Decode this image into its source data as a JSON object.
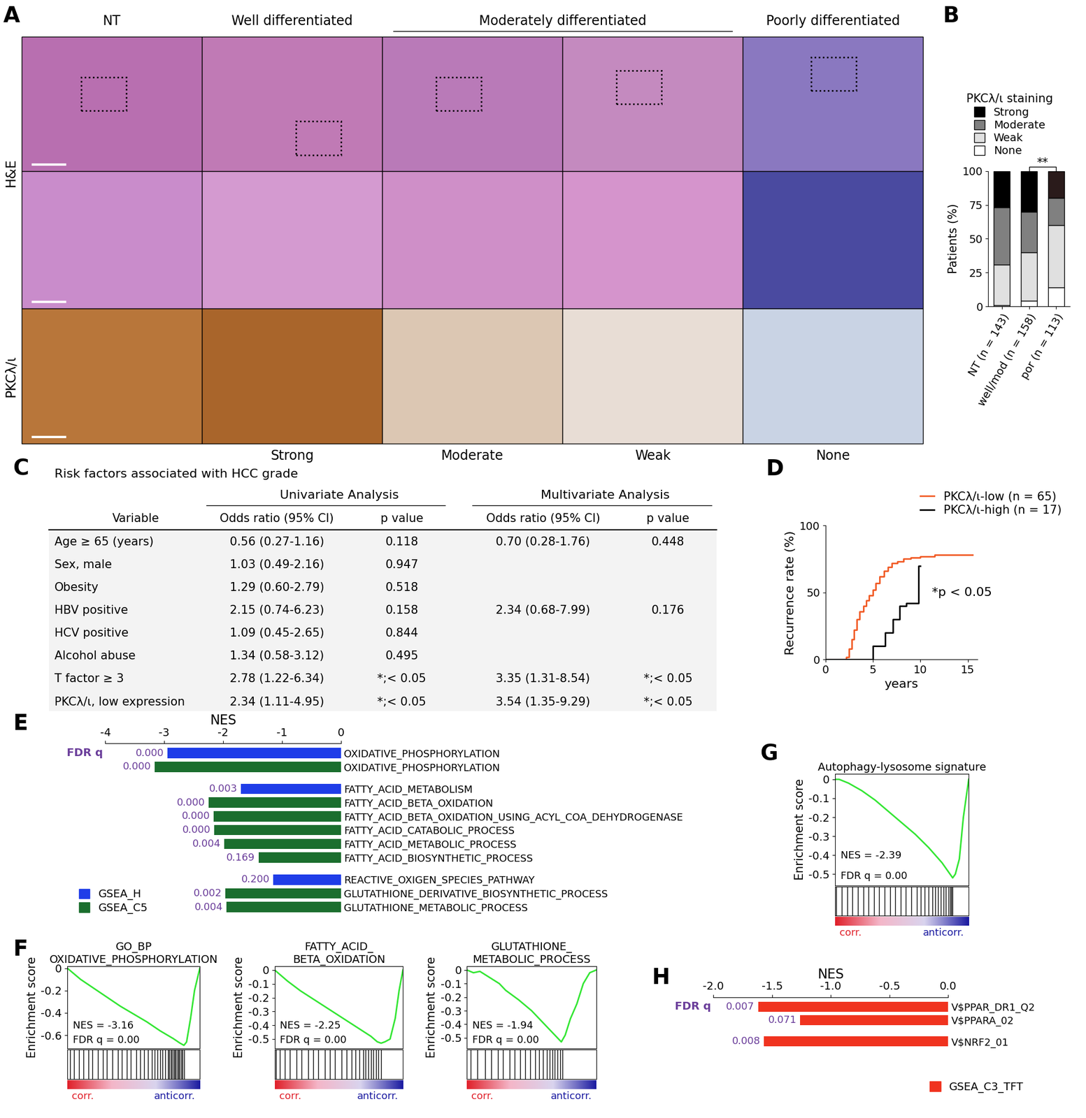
{
  "image_panel": {
    "panel": "A",
    "column_headers": [
      {
        "text": "NT",
        "span": 1
      },
      {
        "text": "Well differentiated",
        "span": 1
      },
      {
        "text": "Moderately differentiated",
        "span": 2
      },
      {
        "text": "Poorly differentiated",
        "span": 1
      }
    ],
    "row_labels": [
      {
        "text": "H&E",
        "rows": 2
      },
      {
        "text": "PKCλ/ι",
        "rows": 1
      }
    ],
    "staining_labels": [
      null,
      "Strong",
      "Moderate",
      "Weak",
      "None"
    ]
  },
  "table": {
    "panel": "C",
    "title": "Risk factors associated with HCC grade",
    "group_headers": [
      {
        "text": "Univariate Analysis",
        "columns": [
          1,
          2
        ]
      },
      {
        "text": "Multivariate Analysis",
        "columns": [
          3,
          4
        ]
      }
    ],
    "columns": [
      "Variable",
      "Odds ratio (95% CI)",
      "p value",
      "Odds ratio (95% CI)",
      "p value"
    ],
    "rows": [
      [
        "Age ≥ 65 (years)",
        "0.56 (0.27-1.16)",
        "0.118",
        "0.70 (0.28-1.76)",
        "0.448"
      ],
      [
        "Sex, male",
        "1.03 (0.49-2.16)",
        "0.947",
        null,
        null
      ],
      [
        "Obesity",
        "1.29 (0.60-2.79)",
        "0.518",
        null,
        null
      ],
      [
        "HBV positive",
        "2.15 (0.74-6.23)",
        "0.158",
        "2.34 (0.68-7.99)",
        "0.176"
      ],
      [
        "HCV positive",
        "1.09 (0.45-2.65)",
        "0.844",
        null,
        null
      ],
      [
        "Alcohol abuse",
        "1.34 (0.58-3.12)",
        "0.495",
        null,
        null
      ],
      [
        "T factor ≥ 3",
        "2.78 (1.22-6.34)",
        "*;< 0.05",
        "3.35 (1.31-8.54)",
        "*;< 0.05"
      ],
      [
        "PKCλ/ι, low expression",
        "2.34 (1.11-4.95)",
        "*;< 0.05",
        "3.54 (1.35-9.29)",
        "*;< 0.05"
      ]
    ]
  },
  "chart_data": [
    {
      "panel": "B",
      "type": "bar",
      "stacked": true,
      "legend_title": "PKCλ/ι staining",
      "legend": "lower left",
      "ylabel": "Patients (%)",
      "ylim": [
        0,
        100
      ],
      "yticks": [
        0,
        25,
        50,
        75,
        100
      ],
      "categories": [
        "NT (n = 143)",
        "well/mod (n = 158)",
        "por (n = 113)"
      ],
      "annotation": "**",
      "series": [
        {
          "name": "None",
          "color": "#ffffff",
          "values": [
            1,
            4,
            14
          ]
        },
        {
          "name": "Weak",
          "color": "#e0e0e0",
          "values": [
            30,
            36,
            46
          ]
        },
        {
          "name": "Moderate",
          "color": "#808080",
          "values": [
            42,
            30,
            20
          ]
        },
        {
          "name": "Strong",
          "color": "#000000",
          "colors": [
            "#000000",
            "#000000",
            "#2a1b1b"
          ],
          "values": [
            27,
            30,
            20
          ]
        }
      ]
    },
    {
      "panel": "D",
      "type": "line",
      "line_style": "steps",
      "legend": "lower right",
      "xlabel": "years",
      "ylabel": "Recurrence rate (%)",
      "xlim": [
        0,
        16
      ],
      "xticks": [
        0,
        5,
        10,
        15
      ],
      "ylim": [
        0,
        100
      ],
      "yticks": [
        0,
        50,
        100
      ],
      "annotation": "*p < 0.05",
      "series": [
        {
          "name": "PKCλ/ι-low (n = 65)",
          "color": "#f15a24",
          "x": [
            0,
            2.2,
            2.5,
            2.8,
            3.0,
            3.3,
            3.6,
            4.0,
            4.3,
            4.6,
            5.0,
            5.3,
            5.7,
            6.2,
            6.6,
            7.0,
            7.6,
            8.2,
            9.0,
            10.0,
            11.5,
            13.0,
            15.5
          ],
          "values": [
            0,
            2,
            8,
            15,
            22,
            30,
            36,
            40,
            44,
            48,
            52,
            57,
            62,
            66,
            69,
            72,
            73,
            75,
            76,
            77,
            78,
            78,
            78
          ]
        },
        {
          "name": "PKCλ/ι-high (n = 17)",
          "color": "#000000",
          "x": [
            0,
            4.8,
            5.0,
            6.3,
            7.1,
            7.8,
            8.5,
            9.2,
            9.8,
            10.0
          ],
          "values": [
            0,
            0,
            10,
            20,
            30,
            40,
            42,
            42,
            70,
            70
          ]
        }
      ]
    },
    {
      "panel": "E",
      "type": "bar",
      "orientation": "horizontal",
      "xlabel": "NES",
      "q_label": "FDR q",
      "xlim": [
        -4,
        0
      ],
      "xticks": [
        -4,
        -3,
        -2,
        -1,
        0
      ],
      "legend": "lower left",
      "series": [
        {
          "name": "GSEA_H",
          "color": "#1f3de8"
        },
        {
          "name": "GSEA_C5",
          "color": "#1b6e2e"
        }
      ],
      "groups": [
        [
          {
            "category": "OXIDATIVE_PHOSPHORYLATION",
            "series": "GSEA_H",
            "value": -2.95,
            "fdr_q": "0.000"
          },
          {
            "category": "OXIDATIVE_PHOSPHORYLATION",
            "series": "GSEA_C5",
            "value": -3.16,
            "fdr_q": "0.000"
          }
        ],
        [
          {
            "category": "FATTY_ACID_METABOLISM",
            "series": "GSEA_H",
            "value": -1.7,
            "fdr_q": "0.003"
          },
          {
            "category": "FATTY_ACID_BETA_OXIDATION",
            "series": "GSEA_C5",
            "value": -2.25,
            "fdr_q": "0.000"
          },
          {
            "category": "FATTY_ACID_BETA_OXIDATION_USING_ACYL_COA_DEHYDROGENASE",
            "series": "GSEA_C5",
            "value": -2.16,
            "fdr_q": "0.000"
          },
          {
            "category": "FATTY_ACID_CATABOLIC_PROCESS",
            "series": "GSEA_C5",
            "value": -2.15,
            "fdr_q": "0.000"
          },
          {
            "category": "FATTY_ACID_METABOLIC_PROCESS",
            "series": "GSEA_C5",
            "value": -1.98,
            "fdr_q": "0.004"
          },
          {
            "category": "FATTY_ACID_BIOSYNTHETIC_PROCESS",
            "series": "GSEA_C5",
            "value": -1.4,
            "fdr_q": "0.169"
          }
        ],
        [
          {
            "category": "REACTIVE_OXIGEN_SPECIES_PATHWAY",
            "series": "GSEA_H",
            "value": -1.15,
            "fdr_q": "0.200"
          },
          {
            "category": "GLUTATHIONE_DERIVATIVE_BIOSYNTHETIC_PROCESS",
            "series": "GSEA_C5",
            "value": -1.96,
            "fdr_q": "0.002"
          },
          {
            "category": "GLUTATHIONE_METABOLIC_PROCESS",
            "series": "GSEA_C5",
            "value": -1.94,
            "fdr_q": "0.004"
          }
        ]
      ]
    },
    {
      "panel": "F",
      "type": "line",
      "title": "GO_BP\nOXIDATIVE_PHOSPHORYLATION",
      "ylabel": "Enrichment score",
      "tick_labels": "y",
      "color": "#33e633",
      "nes_text": "NES = -3.16",
      "fdr_text": "FDR q = 0.00",
      "corr_label": "corr.",
      "anticorr_label": "anticorr.",
      "xlim": [
        0,
        100
      ],
      "ylim": [
        -0.72,
        0.02
      ],
      "yticks": [
        0,
        -0.2,
        -0.4,
        -0.6
      ],
      "x": [
        0,
        5,
        10,
        20,
        30,
        40,
        50,
        60,
        70,
        80,
        85,
        88,
        90,
        93,
        96,
        100
      ],
      "values": [
        0,
        -0.05,
        -0.1,
        -0.18,
        -0.26,
        -0.34,
        -0.41,
        -0.48,
        -0.56,
        -0.63,
        -0.67,
        -0.69,
        -0.66,
        -0.45,
        -0.2,
        0
      ],
      "hits": [
        2,
        5,
        9,
        12,
        16,
        19,
        23,
        27,
        30,
        34,
        38,
        41,
        45,
        48,
        52,
        55,
        58,
        61,
        64,
        66,
        68,
        70,
        72,
        74,
        76,
        77,
        78,
        79,
        80,
        81,
        82,
        83,
        84,
        85,
        86,
        87,
        88
      ]
    },
    {
      "type": "line",
      "title": "FATTY_ACID_\nBETA_OXIDATION",
      "ylabel": "Enrichment score",
      "tick_labels": "y",
      "color": "#33e633",
      "nes_text": "NES = -2.25",
      "fdr_text": "FDR q = 0.00",
      "corr_label": "corr.",
      "anticorr_label": "anticorr.",
      "xlim": [
        0,
        100
      ],
      "ylim": [
        -0.57,
        0.03
      ],
      "yticks": [
        0,
        -0.1,
        -0.2,
        -0.3,
        -0.4,
        -0.5
      ],
      "x": [
        0,
        5,
        10,
        20,
        30,
        40,
        50,
        60,
        70,
        75,
        80,
        83,
        86,
        90,
        94,
        97,
        100
      ],
      "values": [
        0,
        -0.04,
        -0.08,
        -0.15,
        -0.21,
        -0.27,
        -0.33,
        -0.39,
        -0.45,
        -0.48,
        -0.52,
        -0.53,
        -0.52,
        -0.5,
        -0.35,
        -0.15,
        0
      ],
      "hits": [
        1,
        4,
        8,
        12,
        17,
        21,
        26,
        30,
        34,
        39,
        43,
        47,
        52,
        56,
        60,
        63,
        66,
        69,
        71,
        73,
        75,
        77,
        79,
        81,
        83
      ]
    },
    {
      "type": "line",
      "title": "GLUTATHIONE_\nMETABOLIC_PROCESS",
      "ylabel": "Enrichment score",
      "tick_labels": "y",
      "color": "#33e633",
      "nes_text": "NES = -1.94",
      "fdr_text": "FDR q = 0.00",
      "corr_label": "corr.",
      "anticorr_label": "anticorr.",
      "xlim": [
        0,
        100
      ],
      "ylim": [
        -0.58,
        0.03
      ],
      "yticks": [
        0,
        -0.1,
        -0.2,
        -0.3,
        -0.4,
        -0.5
      ],
      "x": [
        0,
        5,
        10,
        15,
        20,
        25,
        30,
        40,
        50,
        60,
        65,
        70,
        73,
        76,
        80,
        85,
        90,
        95,
        100
      ],
      "values": [
        0,
        -0.02,
        -0.01,
        -0.04,
        -0.07,
        -0.1,
        -0.15,
        -0.22,
        -0.3,
        -0.4,
        -0.45,
        -0.5,
        -0.53,
        -0.48,
        -0.36,
        -0.25,
        -0.1,
        -0.02,
        0
      ],
      "hits": [
        3,
        8,
        14,
        19,
        24,
        28,
        33,
        37,
        41,
        45,
        49,
        53,
        56,
        59,
        62,
        64,
        66,
        68,
        70,
        72,
        74
      ]
    },
    {
      "panel": "G",
      "type": "line",
      "title": "Autophagy-lysosome signature",
      "ylabel": "Enrichment score",
      "tick_labels": "y",
      "color": "#33e633",
      "nes_text": "NES = -2.39",
      "fdr_text": "FDR q = 0.00",
      "corr_label": "corr.",
      "anticorr_label": "anticorr.",
      "xlim": [
        0,
        100
      ],
      "ylim": [
        -0.56,
        0.03
      ],
      "yticks": [
        0,
        -0.1,
        -0.2,
        -0.3,
        -0.4,
        -0.5
      ],
      "x": [
        0,
        3,
        10,
        20,
        30,
        40,
        50,
        60,
        70,
        80,
        85,
        88,
        90,
        93,
        96,
        100
      ],
      "values": [
        0,
        0,
        -0.02,
        -0.06,
        -0.11,
        -0.17,
        -0.23,
        -0.29,
        -0.36,
        -0.44,
        -0.49,
        -0.52,
        -0.5,
        -0.42,
        -0.2,
        0
      ],
      "hits": [
        1,
        5,
        9,
        13,
        17,
        21,
        25,
        29,
        33,
        37,
        41,
        45,
        49,
        53,
        57,
        61,
        64,
        67,
        70,
        73,
        75,
        77,
        79,
        81,
        83,
        85,
        86,
        87,
        88
      ]
    },
    {
      "panel": "H",
      "type": "bar",
      "orientation": "horizontal",
      "xlabel": "NES",
      "q_label": "FDR q",
      "xlim": [
        -2.0,
        0.0
      ],
      "xticks": [
        -2.0,
        -1.5,
        -1.0,
        -0.5,
        0.0
      ],
      "legend": "lower right",
      "series": [
        {
          "name": "GSEA_C3_TFT",
          "color": "#f0331f"
        }
      ],
      "groups": [
        [
          {
            "category": "V$PPAR_DR1_Q2",
            "series": "GSEA_C3_TFT",
            "value": -1.62,
            "fdr_q": "0.007"
          },
          {
            "category": "V$PPARA_02",
            "series": "GSEA_C3_TFT",
            "value": -1.26,
            "fdr_q": "0.071"
          }
        ],
        [
          {
            "category": "V$NRF2_01",
            "series": "GSEA_C3_TFT",
            "value": -1.57,
            "fdr_q": "0.008"
          }
        ]
      ]
    }
  ]
}
